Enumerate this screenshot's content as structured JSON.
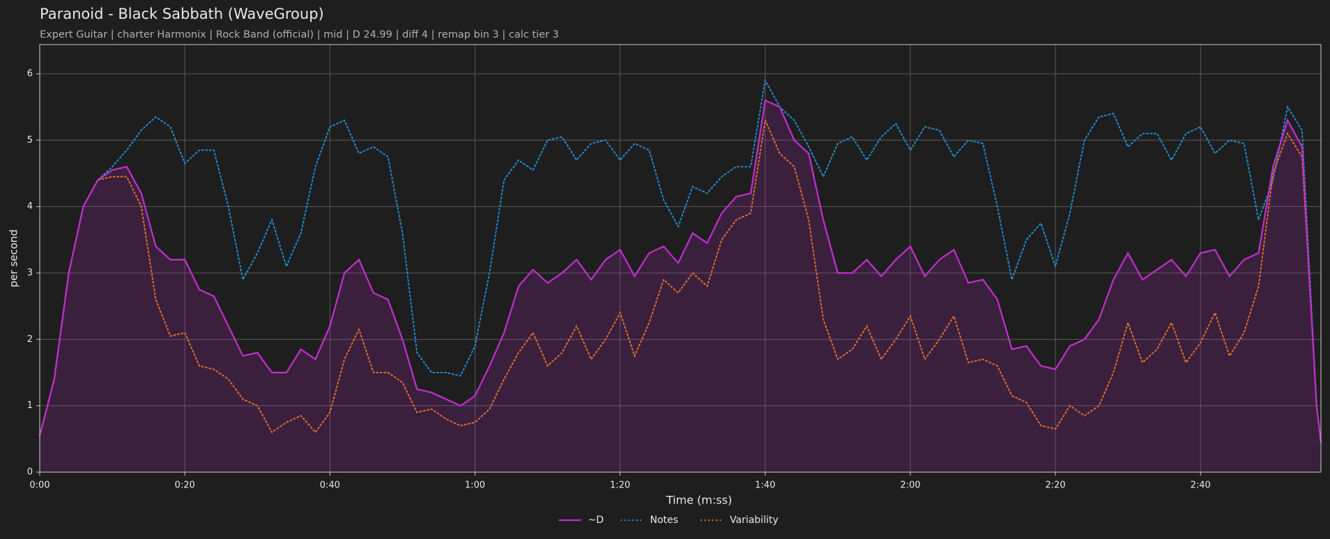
{
  "chart_data": {
    "type": "line",
    "title": "Paranoid - Black Sabbath (WaveGroup)",
    "subtitle": "Expert Guitar  |  charter Harmonix  |  Rock Band (official)  |  mid  |  D 24.99  |  diff 4  |  remap bin 3  |  calc tier 3",
    "xlabel": "Time (m:ss)",
    "ylabel": "per second",
    "x": [
      0,
      2,
      4,
      6,
      8,
      10,
      12,
      14,
      16,
      18,
      20,
      22,
      24,
      26,
      28,
      30,
      32,
      34,
      36,
      38,
      40,
      42,
      44,
      46,
      48,
      50,
      52,
      54,
      56,
      58,
      60,
      62,
      64,
      66,
      68,
      70,
      72,
      74,
      76,
      78,
      80,
      82,
      84,
      86,
      88,
      90,
      92,
      94,
      96,
      98,
      100,
      102,
      104,
      106,
      108,
      110,
      112,
      114,
      116,
      118,
      120,
      122,
      124,
      126,
      128,
      130,
      132,
      134,
      136,
      138,
      140,
      142,
      144,
      146,
      148,
      150,
      152,
      154,
      156,
      158,
      160,
      162,
      164,
      166,
      168,
      170,
      172,
      174,
      176,
      176.6
    ],
    "xlim": [
      0,
      176.6
    ],
    "xticks": [
      {
        "value": 0,
        "label": "0:00"
      },
      {
        "value": 20,
        "label": "0:20"
      },
      {
        "value": 40,
        "label": "0:40"
      },
      {
        "value": 60,
        "label": "1:00"
      },
      {
        "value": 80,
        "label": "1:20"
      },
      {
        "value": 100,
        "label": "1:40"
      },
      {
        "value": 120,
        "label": "2:00"
      },
      {
        "value": 140,
        "label": "2:20"
      },
      {
        "value": 160,
        "label": "2:40"
      }
    ],
    "ylim": [
      0,
      6.44
    ],
    "yticks": [
      0,
      1,
      2,
      3,
      4,
      5,
      6
    ],
    "grid": true,
    "legend": "bottom",
    "series": [
      {
        "name": "~D",
        "color": "#c22fcf",
        "style": "solid",
        "fill": true,
        "values": [
          0.55,
          1.4,
          3.0,
          4.0,
          4.4,
          4.55,
          4.6,
          4.2,
          3.4,
          3.2,
          3.2,
          2.75,
          2.65,
          2.2,
          1.75,
          1.8,
          1.5,
          1.5,
          1.85,
          1.7,
          2.2,
          3.0,
          3.2,
          2.7,
          2.6,
          2.0,
          1.25,
          1.2,
          1.1,
          1.0,
          1.15,
          1.6,
          2.1,
          2.8,
          3.05,
          2.85,
          3.0,
          3.2,
          2.9,
          3.2,
          3.35,
          2.95,
          3.3,
          3.4,
          3.15,
          3.6,
          3.45,
          3.9,
          4.15,
          4.2,
          5.6,
          5.5,
          5.0,
          4.8,
          3.8,
          3.0,
          3.0,
          3.2,
          2.95,
          3.2,
          3.4,
          2.95,
          3.2,
          3.35,
          2.85,
          2.9,
          2.6,
          1.85,
          1.9,
          1.6,
          1.55,
          1.9,
          2.0,
          2.3,
          2.9,
          3.3,
          2.9,
          3.05,
          3.2,
          2.95,
          3.3,
          3.35,
          2.95,
          3.2,
          3.3,
          4.6,
          5.3,
          4.9,
          1.0,
          0.45
        ]
      },
      {
        "name": "Notes",
        "color": "#1f8fd0",
        "style": "dotted",
        "values": [
          0.55,
          1.4,
          3.0,
          4.0,
          4.4,
          4.6,
          4.85,
          5.15,
          5.35,
          5.2,
          4.65,
          4.85,
          4.85,
          4.0,
          2.9,
          3.3,
          3.8,
          3.1,
          3.6,
          4.6,
          5.2,
          5.3,
          4.8,
          4.9,
          4.75,
          3.6,
          1.8,
          1.5,
          1.5,
          1.45,
          1.9,
          3.0,
          4.4,
          4.7,
          4.55,
          5.0,
          5.05,
          4.7,
          4.95,
          5.0,
          4.7,
          4.95,
          4.85,
          4.1,
          3.7,
          4.3,
          4.2,
          4.45,
          4.6,
          4.6,
          5.9,
          5.5,
          5.3,
          4.9,
          4.45,
          4.95,
          5.05,
          4.7,
          5.05,
          5.25,
          4.85,
          5.2,
          5.15,
          4.75,
          5.0,
          4.95,
          4.0,
          2.9,
          3.5,
          3.75,
          3.1,
          3.9,
          5.0,
          5.35,
          5.4,
          4.9,
          5.1,
          5.1,
          4.7,
          5.1,
          5.2,
          4.8,
          5.0,
          4.95,
          3.8,
          4.4,
          5.5,
          5.15,
          1.0,
          0.45
        ]
      },
      {
        "name": "Variability",
        "color": "#e0702a",
        "style": "dotted",
        "values": [
          0.55,
          1.4,
          3.0,
          4.0,
          4.4,
          4.45,
          4.45,
          4.0,
          2.6,
          2.05,
          2.1,
          1.6,
          1.55,
          1.4,
          1.1,
          1.0,
          0.6,
          0.75,
          0.85,
          0.6,
          0.9,
          1.7,
          2.15,
          1.5,
          1.5,
          1.35,
          0.9,
          0.95,
          0.8,
          0.7,
          0.75,
          0.95,
          1.4,
          1.8,
          2.1,
          1.6,
          1.8,
          2.2,
          1.7,
          2.0,
          2.4,
          1.75,
          2.25,
          2.9,
          2.7,
          3.0,
          2.8,
          3.5,
          3.8,
          3.9,
          5.3,
          4.8,
          4.6,
          3.8,
          2.3,
          1.7,
          1.85,
          2.2,
          1.7,
          2.0,
          2.35,
          1.7,
          2.0,
          2.35,
          1.65,
          1.7,
          1.6,
          1.15,
          1.05,
          0.7,
          0.65,
          1.0,
          0.85,
          1.0,
          1.5,
          2.25,
          1.65,
          1.85,
          2.25,
          1.65,
          1.95,
          2.4,
          1.75,
          2.1,
          2.8,
          4.5,
          5.1,
          4.75,
          1.0,
          0.45
        ]
      }
    ]
  }
}
